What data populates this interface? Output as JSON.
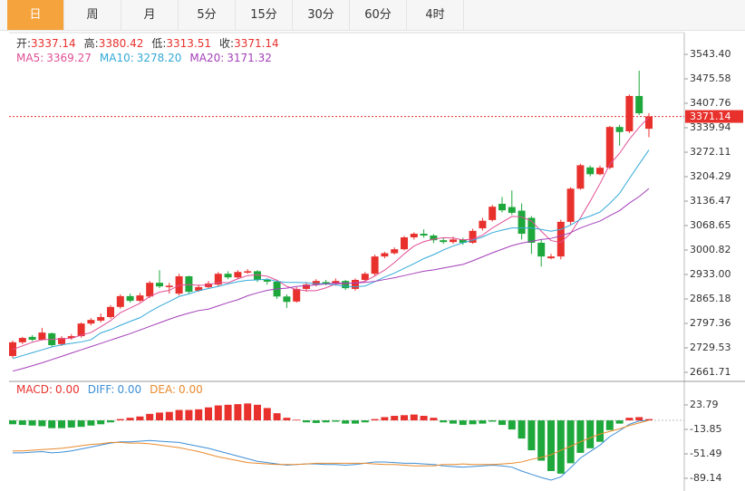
{
  "tabs": [
    {
      "label": "日",
      "active": true
    },
    {
      "label": "周",
      "active": false
    },
    {
      "label": "月",
      "active": false
    },
    {
      "label": "5分",
      "active": false
    },
    {
      "label": "15分",
      "active": false
    },
    {
      "label": "30分",
      "active": false
    },
    {
      "label": "60分",
      "active": false
    },
    {
      "label": "4时",
      "active": false
    }
  ],
  "chart_data": [
    {
      "type": "candlestick",
      "color_up": "#e8312d",
      "color_down": "#1ea83c",
      "ohlc_labels": [
        "开:",
        "高:",
        "低:",
        "收:"
      ],
      "ohlc": [
        [
          2707,
          2750,
          2702,
          2745
        ],
        [
          2745,
          2760,
          2740,
          2757
        ],
        [
          2760,
          2765,
          2748,
          2752
        ],
        [
          2752,
          2785,
          2750,
          2772
        ],
        [
          2770,
          2772,
          2732,
          2737
        ],
        [
          2740,
          2762,
          2735,
          2757
        ],
        [
          2757,
          2768,
          2752,
          2762
        ],
        [
          2762,
          2800,
          2758,
          2797
        ],
        [
          2797,
          2812,
          2792,
          2807
        ],
        [
          2805,
          2825,
          2800,
          2815
        ],
        [
          2815,
          2848,
          2810,
          2843
        ],
        [
          2843,
          2878,
          2838,
          2873
        ],
        [
          2873,
          2880,
          2855,
          2860
        ],
        [
          2860,
          2882,
          2856,
          2875
        ],
        [
          2872,
          2915,
          2868,
          2910
        ],
        [
          2910,
          2945,
          2895,
          2900
        ],
        [
          2898,
          2910,
          2880,
          2902
        ],
        [
          2880,
          2935,
          2875,
          2928
        ],
        [
          2928,
          2930,
          2880,
          2885
        ],
        [
          2888,
          2905,
          2885,
          2898
        ],
        [
          2898,
          2915,
          2895,
          2908
        ],
        [
          2905,
          2940,
          2900,
          2935
        ],
        [
          2935,
          2942,
          2920,
          2925
        ],
        [
          2925,
          2945,
          2920,
          2940
        ],
        [
          2938,
          2948,
          2935,
          2942
        ],
        [
          2942,
          2945,
          2912,
          2918
        ],
        [
          2918,
          2922,
          2905,
          2913
        ],
        [
          2913,
          2915,
          2865,
          2872
        ],
        [
          2872,
          2878,
          2840,
          2857
        ],
        [
          2858,
          2898,
          2855,
          2893
        ],
        [
          2893,
          2912,
          2885,
          2905
        ],
        [
          2905,
          2920,
          2900,
          2915
        ],
        [
          2912,
          2918,
          2903,
          2908
        ],
        [
          2908,
          2922,
          2902,
          2915
        ],
        [
          2915,
          2918,
          2890,
          2895
        ],
        [
          2893,
          2922,
          2888,
          2918
        ],
        [
          2918,
          2940,
          2912,
          2935
        ],
        [
          2935,
          2988,
          2930,
          2983
        ],
        [
          2983,
          2996,
          2978,
          2992
        ],
        [
          2992,
          3008,
          2988,
          3003
        ],
        [
          3003,
          3040,
          3000,
          3036
        ],
        [
          3036,
          3050,
          3030,
          3046
        ],
        [
          3046,
          3058,
          3035,
          3041
        ],
        [
          3041,
          3045,
          3020,
          3028
        ],
        [
          3028,
          3035,
          3018,
          3023
        ],
        [
          3023,
          3038,
          3018,
          3030
        ],
        [
          3030,
          3035,
          3015,
          3021
        ],
        [
          3021,
          3060,
          3018,
          3054
        ],
        [
          3061,
          3090,
          3055,
          3082
        ],
        [
          3084,
          3126,
          3080,
          3121
        ],
        [
          3129,
          3148,
          3105,
          3111
        ],
        [
          3120,
          3166,
          3098,
          3104
        ],
        [
          3110,
          3130,
          3030,
          3046
        ],
        [
          3090,
          3095,
          2990,
          3021
        ],
        [
          3021,
          3030,
          2955,
          2983
        ],
        [
          2978,
          2990,
          2975,
          2983
        ],
        [
          2983,
          3085,
          2975,
          3079
        ],
        [
          3079,
          3175,
          3070,
          3171
        ],
        [
          3171,
          3240,
          3168,
          3236
        ],
        [
          3230,
          3235,
          3205,
          3211
        ],
        [
          3211,
          3235,
          3208,
          3229
        ],
        [
          3229,
          3345,
          3225,
          3342
        ],
        [
          3342,
          3348,
          3290,
          3328
        ],
        [
          3330,
          3432,
          3325,
          3428
        ],
        [
          3428,
          3498,
          3375,
          3380
        ],
        [
          3337.14,
          3380.42,
          3313.51,
          3371.14
        ]
      ],
      "series": [
        {
          "name": "MA5:",
          "color": "#e04f95",
          "legend_value": "3369.27",
          "values": [
            2725,
            2735,
            2745,
            2752,
            2753,
            2755,
            2756,
            2765,
            2772,
            2788,
            2805,
            2827,
            2840,
            2853,
            2872,
            2884,
            2889,
            2903,
            2905,
            2903,
            2904,
            2911,
            2910,
            2921,
            2930,
            2932,
            2928,
            2917,
            2900,
            2891,
            2888,
            2888,
            2896,
            2907,
            2908,
            2910,
            2914,
            2929,
            2945,
            2966,
            2990,
            3012,
            3024,
            3031,
            3035,
            3034,
            3029,
            3031,
            3042,
            3062,
            3078,
            3094,
            3093,
            3081,
            3053,
            3027,
            3022,
            3047,
            3090,
            3136,
            3185,
            3238,
            3269,
            3308,
            3341,
            3369.27
          ]
        },
        {
          "name": "MA10:",
          "color": "#33a9d9",
          "legend_value": "3278.20",
          "values": [
            2700,
            2708,
            2716,
            2724,
            2732,
            2738,
            2742,
            2746,
            2752,
            2771,
            2780,
            2792,
            2803,
            2813,
            2830,
            2845,
            2858,
            2872,
            2879,
            2888,
            2894,
            2900,
            2907,
            2913,
            2917,
            2918,
            2920,
            2914,
            2911,
            2911,
            2910,
            2908,
            2907,
            2904,
            2900,
            2899,
            2901,
            2913,
            2926,
            2937,
            2950,
            2963,
            2977,
            2988,
            3001,
            3012,
            3021,
            3028,
            3037,
            3049,
            3056,
            3062,
            3062,
            3062,
            3058,
            3053,
            3058,
            3070,
            3086,
            3095,
            3106,
            3130,
            3158,
            3199,
            3239,
            3278.2
          ]
        },
        {
          "name": "MA20:",
          "color": "#a43fb9",
          "legend_value": "3171.32",
          "values": [
            2665,
            2672,
            2680,
            2688,
            2697,
            2706,
            2715,
            2724,
            2733,
            2742,
            2751,
            2760,
            2769,
            2779,
            2789,
            2799,
            2809,
            2818,
            2826,
            2833,
            2837,
            2846,
            2855,
            2863,
            2874,
            2882,
            2889,
            2893,
            2895,
            2900,
            2902,
            2904,
            2907,
            2909,
            2909,
            2909,
            2911,
            2914,
            2919,
            2924,
            2930,
            2936,
            2942,
            2946,
            2951,
            2956,
            2961,
            2971,
            2982,
            2993,
            3003,
            3013,
            3020,
            3025,
            3030,
            3033,
            3040,
            3049,
            3062,
            3072,
            3081,
            3096,
            3110,
            3131,
            3149,
            3171.32
          ]
        }
      ],
      "ylim": [
        2639.1,
        3603.7
      ],
      "yticks": [
        {
          "value": 3543.4,
          "label": "3543.40"
        },
        3475.58,
        3407.76,
        3339.94,
        3272.11,
        3204.29,
        3136.47,
        3068.65,
        3000.82,
        {
          "value": 2933,
          "label": "2933.00"
        },
        2865.18,
        2797.36,
        2729.53,
        2661.71
      ],
      "last_price_line": true
    },
    {
      "type": "macd",
      "color_up": "#e8312d",
      "color_down": "#1ea83c",
      "histogram": {
        "name": "MACD:",
        "legend_value": "0.00",
        "values": [
          -6,
          -7,
          -8,
          -9,
          -12,
          -12,
          -11,
          -10,
          -8,
          -6,
          -3,
          2,
          4,
          6,
          10,
          12,
          13,
          16,
          16,
          17,
          20,
          23,
          24,
          25,
          26,
          24,
          19,
          11,
          4,
          1,
          -3,
          -4,
          -3,
          -2,
          -5,
          -5,
          -3,
          2,
          5,
          7,
          8,
          9,
          7,
          4,
          -3,
          -5,
          -7,
          -6,
          -5,
          -2,
          -7,
          -14,
          -28,
          -46,
          -62,
          -78,
          -82,
          -66,
          -50,
          -43,
          -33,
          -15,
          -5,
          4,
          5,
          2
        ]
      },
      "series": [
        {
          "name": "DIFF:",
          "color": "#3d8fd6",
          "legend_value": "0.00",
          "values": [
            -50,
            -50,
            -49,
            -48,
            -50,
            -49,
            -47,
            -44,
            -41,
            -38,
            -35,
            -33,
            -33,
            -32,
            -31,
            -32,
            -33,
            -34,
            -37,
            -40,
            -43,
            -47,
            -51,
            -55,
            -59,
            -63,
            -65,
            -67,
            -69,
            -68,
            -67,
            -67,
            -68,
            -68,
            -69,
            -68,
            -66,
            -64,
            -64,
            -65,
            -66,
            -66,
            -67,
            -68,
            -70,
            -71,
            -72,
            -71,
            -70,
            -69,
            -70,
            -72,
            -78,
            -83,
            -88,
            -92,
            -87,
            -73,
            -58,
            -48,
            -38,
            -25,
            -16,
            -6,
            -1,
            0
          ]
        },
        {
          "name": "DEA:",
          "color": "#e98a2e",
          "legend_value": "0.00",
          "values": [
            -47,
            -47,
            -46,
            -45,
            -44,
            -43,
            -41,
            -39,
            -37,
            -36,
            -34,
            -34,
            -35,
            -35,
            -36,
            -38,
            -40,
            -42,
            -45,
            -48,
            -52,
            -56,
            -59,
            -62,
            -65,
            -66,
            -67,
            -68,
            -68,
            -68,
            -67,
            -66,
            -66,
            -66,
            -66,
            -66,
            -66,
            -67,
            -68,
            -68,
            -69,
            -70,
            -70,
            -70,
            -68,
            -68,
            -67,
            -68,
            -68,
            -68,
            -67,
            -66,
            -64,
            -60,
            -57,
            -53,
            -46,
            -40,
            -33,
            -27,
            -21,
            -17,
            -13,
            -8,
            -4,
            0
          ]
        }
      ],
      "ylim": [
        -105.9,
        58.6
      ],
      "yticks": [
        23.79,
        -13.85,
        -51.49,
        -89.14
      ]
    }
  ]
}
